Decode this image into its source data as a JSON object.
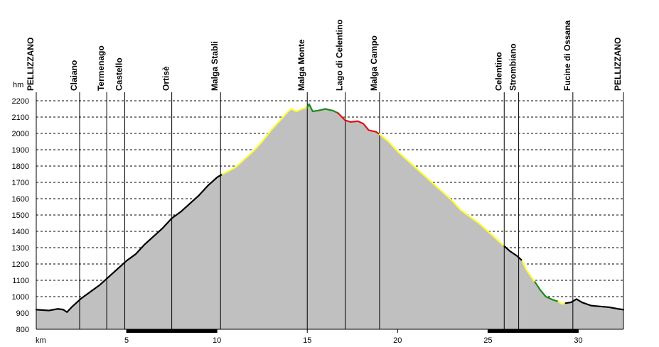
{
  "chart_data": {
    "type": "area",
    "xlabel": "km",
    "ylabel": "hm",
    "xlim": [
      0,
      32.5
    ],
    "ylim": [
      800,
      2200
    ],
    "x_ticks": [
      5,
      10,
      15,
      20,
      25,
      30
    ],
    "y_ticks": [
      800,
      900,
      1000,
      1100,
      1200,
      1300,
      1400,
      1500,
      1600,
      1700,
      1800,
      1900,
      2000,
      2100,
      2200
    ],
    "grid": true,
    "fill_color": "#c0c0c0",
    "gradient_colors": {
      "flat": "#000000",
      "moderate": "#ffff33",
      "steep_easy": "#1a8a1a",
      "steep": "#dd1111"
    },
    "waypoints": [
      {
        "name": "PELLIZZANO",
        "km": 0
      },
      {
        "name": "Claiano",
        "km": 2.4
      },
      {
        "name": "Termenago",
        "km": 3.9
      },
      {
        "name": "Castello",
        "km": 4.9
      },
      {
        "name": "Ortisè",
        "km": 7.5
      },
      {
        "name": "Malga Stabli",
        "km": 10.2
      },
      {
        "name": "Malga Monte",
        "km": 15.0
      },
      {
        "name": "Lago di Celentino",
        "km": 17.1
      },
      {
        "name": "Malga Campo",
        "km": 19.0
      },
      {
        "name": "Celentino",
        "km": 25.9
      },
      {
        "name": "Strombiano",
        "km": 26.7
      },
      {
        "name": "Fucine di Ossana",
        "km": 29.7
      },
      {
        "name": "PELLIZZANO",
        "km": 32.5
      }
    ],
    "km_bars": [
      [
        5,
        10
      ],
      [
        25,
        30
      ]
    ],
    "segments": [
      {
        "grade": "flat",
        "points": [
          [
            0,
            920
          ],
          [
            0.7,
            915
          ],
          [
            1.2,
            925
          ],
          [
            1.5,
            920
          ],
          [
            1.7,
            905
          ],
          [
            2.0,
            940
          ],
          [
            2.5,
            990
          ],
          [
            3.0,
            1030
          ],
          [
            3.5,
            1070
          ],
          [
            4.0,
            1120
          ],
          [
            4.5,
            1170
          ],
          [
            5.0,
            1220
          ],
          [
            5.5,
            1260
          ],
          [
            6.0,
            1320
          ],
          [
            6.5,
            1370
          ],
          [
            7.0,
            1420
          ],
          [
            7.5,
            1480
          ],
          [
            8.0,
            1520
          ],
          [
            8.5,
            1570
          ],
          [
            9.0,
            1620
          ],
          [
            9.5,
            1680
          ],
          [
            10.0,
            1730
          ],
          [
            10.3,
            1750
          ]
        ]
      },
      {
        "grade": "moderate",
        "points": [
          [
            10.3,
            1750
          ],
          [
            11.0,
            1790
          ],
          [
            11.5,
            1840
          ],
          [
            12.0,
            1890
          ],
          [
            12.5,
            1950
          ],
          [
            13.0,
            2020
          ],
          [
            13.5,
            2080
          ],
          [
            13.9,
            2130
          ],
          [
            14.1,
            2150
          ],
          [
            14.4,
            2135
          ],
          [
            14.7,
            2150
          ],
          [
            15.0,
            2160
          ]
        ]
      },
      {
        "grade": "steep_easy",
        "points": [
          [
            15.0,
            2160
          ],
          [
            15.1,
            2180
          ],
          [
            15.3,
            2135
          ],
          [
            15.6,
            2140
          ],
          [
            16.0,
            2150
          ],
          [
            16.4,
            2140
          ],
          [
            16.7,
            2125
          ]
        ]
      },
      {
        "grade": "steep",
        "points": [
          [
            16.7,
            2125
          ],
          [
            17.1,
            2080
          ],
          [
            17.4,
            2070
          ],
          [
            17.8,
            2075
          ],
          [
            18.1,
            2060
          ],
          [
            18.4,
            2020
          ],
          [
            18.8,
            2010
          ],
          [
            19.0,
            1995
          ]
        ]
      },
      {
        "grade": "moderate",
        "points": [
          [
            19.0,
            1995
          ],
          [
            19.5,
            1950
          ],
          [
            20.0,
            1890
          ],
          [
            20.5,
            1840
          ],
          [
            21.0,
            1790
          ],
          [
            21.5,
            1740
          ],
          [
            22.0,
            1690
          ],
          [
            22.5,
            1640
          ],
          [
            23.0,
            1590
          ],
          [
            23.5,
            1530
          ],
          [
            24.0,
            1490
          ],
          [
            24.5,
            1450
          ],
          [
            25.0,
            1400
          ],
          [
            25.5,
            1350
          ],
          [
            25.9,
            1310
          ]
        ]
      },
      {
        "grade": "flat",
        "points": [
          [
            25.9,
            1310
          ],
          [
            26.2,
            1280
          ],
          [
            26.6,
            1250
          ],
          [
            26.9,
            1220
          ]
        ]
      },
      {
        "grade": "moderate",
        "points": [
          [
            26.9,
            1220
          ],
          [
            27.1,
            1170
          ],
          [
            27.4,
            1120
          ],
          [
            27.6,
            1090
          ]
        ]
      },
      {
        "grade": "steep_easy",
        "points": [
          [
            27.6,
            1090
          ],
          [
            27.9,
            1040
          ],
          [
            28.2,
            1000
          ],
          [
            28.6,
            980
          ],
          [
            28.9,
            970
          ]
        ]
      },
      {
        "grade": "moderate",
        "points": [
          [
            28.9,
            970
          ],
          [
            29.1,
            955
          ],
          [
            29.3,
            960
          ]
        ]
      },
      {
        "grade": "flat",
        "points": [
          [
            29.3,
            960
          ],
          [
            29.6,
            965
          ],
          [
            29.9,
            985
          ],
          [
            30.2,
            965
          ],
          [
            30.7,
            945
          ],
          [
            31.2,
            940
          ],
          [
            31.7,
            935
          ],
          [
            32.2,
            925
          ],
          [
            32.5,
            920
          ]
        ]
      }
    ]
  }
}
